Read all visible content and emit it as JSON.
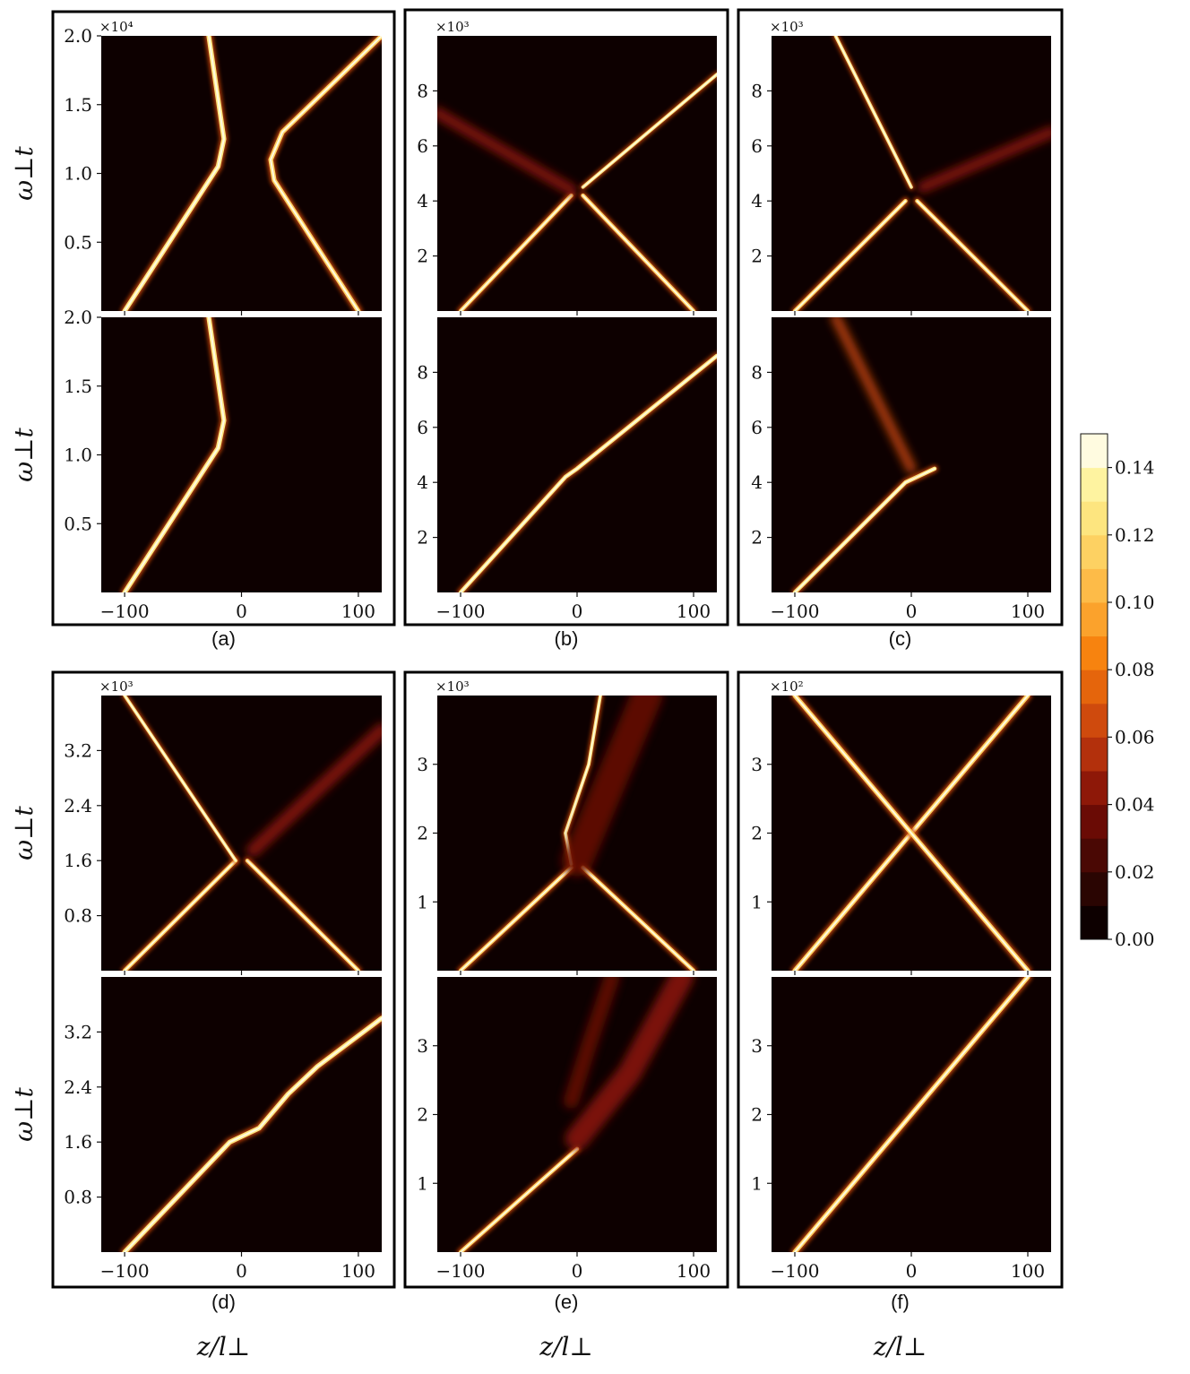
{
  "figure": {
    "ylabel": "ω⊥t",
    "xlabel": "z/l⊥",
    "colormap": [
      "#0d0000",
      "#2a0502",
      "#4a0804",
      "#6a0b05",
      "#8e1808",
      "#b3300c",
      "#cf4a0d",
      "#e5650c",
      "#f7830f",
      "#fba22c",
      "#fdbb48",
      "#fdd162",
      "#fde57f",
      "#fef3a0",
      "#fffbe0"
    ]
  },
  "colorbar": {
    "ticks": [
      "0.00",
      "0.02",
      "0.04",
      "0.06",
      "0.08",
      "0.10",
      "0.12",
      "0.14"
    ],
    "range": [
      0,
      0.15
    ]
  },
  "chart_data": [
    {
      "id": "a",
      "type": "heatmap",
      "caption": "(a)",
      "multiplier": "×10⁴",
      "xlim": [
        -120,
        120
      ],
      "ylim": [
        0,
        2.0
      ],
      "xticks": [
        "−100",
        "0",
        "100"
      ],
      "xtick_values": [
        -100,
        0,
        100
      ],
      "yticks": [
        "0.5",
        "1.0",
        "1.5",
        "2.0"
      ],
      "ytick_values": [
        0.5,
        1.0,
        1.5,
        2.0
      ],
      "top_traces": [
        {
          "width": 3.5,
          "intensity": 1.0,
          "points": [
            [
              -100,
              0
            ],
            [
              -20,
              1.05
            ],
            [
              -15,
              1.25
            ],
            [
              -28,
              2.0
            ]
          ]
        },
        {
          "width": 3.5,
          "intensity": 0.9,
          "points": [
            [
              100,
              0
            ],
            [
              28,
              0.95
            ],
            [
              25,
              1.1
            ],
            [
              35,
              1.3
            ],
            [
              120,
              2.0
            ]
          ]
        }
      ],
      "bottom_traces": [
        {
          "width": 3.5,
          "intensity": 1.0,
          "points": [
            [
              -100,
              0
            ],
            [
              -20,
              1.05
            ],
            [
              -15,
              1.25
            ],
            [
              -28,
              2.0
            ]
          ]
        }
      ]
    },
    {
      "id": "b",
      "type": "heatmap",
      "caption": "(b)",
      "multiplier": "×10³",
      "xlim": [
        -120,
        120
      ],
      "ylim": [
        0,
        10
      ],
      "xticks": [
        "−100",
        "0",
        "100"
      ],
      "xtick_values": [
        -100,
        0,
        100
      ],
      "yticks": [
        "2",
        "4",
        "6",
        "8"
      ],
      "ytick_values": [
        2,
        4,
        6,
        8
      ],
      "top_traces": [
        {
          "width": 3,
          "intensity": 0.9,
          "points": [
            [
              -100,
              0
            ],
            [
              -5,
              4.2
            ]
          ]
        },
        {
          "width": 3,
          "intensity": 0.9,
          "points": [
            [
              100,
              0
            ],
            [
              5,
              4.2
            ]
          ]
        },
        {
          "width": 2.5,
          "intensity": 1.0,
          "points": [
            [
              5,
              4.5
            ],
            [
              120,
              8.6
            ]
          ]
        },
        {
          "width": 6,
          "intensity": 0.25,
          "points": [
            [
              -5,
              4.4
            ],
            [
              -120,
              7.2
            ]
          ]
        }
      ],
      "bottom_traces": [
        {
          "width": 3,
          "intensity": 1.0,
          "points": [
            [
              -100,
              0
            ],
            [
              -10,
              4.2
            ],
            [
              0,
              4.5
            ],
            [
              120,
              8.6
            ]
          ]
        }
      ]
    },
    {
      "id": "c",
      "type": "heatmap",
      "caption": "(c)",
      "multiplier": "×10³",
      "xlim": [
        -120,
        120
      ],
      "ylim": [
        0,
        10
      ],
      "xticks": [
        "−100",
        "0",
        "100"
      ],
      "xtick_values": [
        -100,
        0,
        100
      ],
      "yticks": [
        "2",
        "4",
        "6",
        "8"
      ],
      "ytick_values": [
        2,
        4,
        6,
        8
      ],
      "top_traces": [
        {
          "width": 3,
          "intensity": 0.9,
          "points": [
            [
              -100,
              0
            ],
            [
              -5,
              4.0
            ]
          ]
        },
        {
          "width": 3,
          "intensity": 0.9,
          "points": [
            [
              100,
              0
            ],
            [
              5,
              4.0
            ]
          ]
        },
        {
          "width": 2.5,
          "intensity": 1.0,
          "points": [
            [
              0,
              4.5
            ],
            [
              -65,
              10
            ]
          ]
        },
        {
          "width": 6,
          "intensity": 0.25,
          "points": [
            [
              10,
              4.5
            ],
            [
              120,
              6.5
            ]
          ]
        }
      ],
      "bottom_traces": [
        {
          "width": 3,
          "intensity": 1.0,
          "points": [
            [
              -100,
              0
            ],
            [
              -5,
              4.0
            ],
            [
              20,
              4.5
            ]
          ]
        },
        {
          "width": 5,
          "intensity": 0.45,
          "points": [
            [
              0,
              4.5
            ],
            [
              -65,
              10
            ]
          ]
        }
      ]
    },
    {
      "id": "d",
      "type": "heatmap",
      "caption": "(d)",
      "multiplier": "×10³",
      "xlim": [
        -120,
        120
      ],
      "ylim": [
        0,
        4.0
      ],
      "xticks": [
        "−100",
        "0",
        "100"
      ],
      "xtick_values": [
        -100,
        0,
        100
      ],
      "yticks": [
        "0.8",
        "1.6",
        "2.4",
        "3.2"
      ],
      "ytick_values": [
        0.8,
        1.6,
        2.4,
        3.2
      ],
      "top_traces": [
        {
          "width": 3,
          "intensity": 0.9,
          "points": [
            [
              -100,
              0
            ],
            [
              -5,
              1.6
            ]
          ]
        },
        {
          "width": 3,
          "intensity": 0.9,
          "points": [
            [
              100,
              0
            ],
            [
              5,
              1.6
            ]
          ]
        },
        {
          "width": 2.5,
          "intensity": 1.0,
          "points": [
            [
              -5,
              1.6
            ],
            [
              -100,
              4.0
            ]
          ]
        },
        {
          "width": 7,
          "intensity": 0.3,
          "points": [
            [
              10,
              1.75
            ],
            [
              120,
              3.5
            ]
          ]
        }
      ],
      "bottom_traces": [
        {
          "width": 3.5,
          "intensity": 1.0,
          "points": [
            [
              -100,
              0
            ],
            [
              -10,
              1.6
            ],
            [
              15,
              1.8
            ],
            [
              40,
              2.3
            ],
            [
              65,
              2.7
            ],
            [
              120,
              3.4
            ]
          ]
        }
      ]
    },
    {
      "id": "e",
      "type": "heatmap",
      "caption": "(e)",
      "multiplier": "×10³",
      "xlim": [
        -120,
        120
      ],
      "ylim": [
        0,
        4.0
      ],
      "xticks": [
        "−100",
        "0",
        "100"
      ],
      "xtick_values": [
        -100,
        0,
        100
      ],
      "yticks": [
        "1",
        "2",
        "3"
      ],
      "ytick_values": [
        1,
        2,
        3
      ],
      "top_traces": [
        {
          "width": 3,
          "intensity": 0.9,
          "points": [
            [
              -100,
              0
            ],
            [
              -5,
              1.5
            ]
          ]
        },
        {
          "width": 3,
          "intensity": 0.9,
          "points": [
            [
              100,
              0
            ],
            [
              5,
              1.5
            ]
          ]
        },
        {
          "width": 2.5,
          "intensity": 1.0,
          "points": [
            [
              -5,
              1.55
            ],
            [
              -10,
              2.0
            ],
            [
              0,
              2.5
            ],
            [
              10,
              3.0
            ],
            [
              20,
              4.0
            ]
          ]
        },
        {
          "width": 16,
          "intensity": 0.22,
          "points": [
            [
              0,
              1.6
            ],
            [
              30,
              2.8
            ],
            [
              60,
              4.0
            ]
          ]
        }
      ],
      "bottom_traces": [
        {
          "width": 3,
          "intensity": 0.95,
          "points": [
            [
              -100,
              0
            ],
            [
              0,
              1.5
            ]
          ]
        },
        {
          "width": 12,
          "intensity": 0.28,
          "points": [
            [
              0,
              1.65
            ],
            [
              45,
              2.6
            ],
            [
              90,
              4.0
            ]
          ]
        },
        {
          "width": 8,
          "intensity": 0.22,
          "points": [
            [
              -5,
              2.2
            ],
            [
              10,
              3.0
            ],
            [
              30,
              4.0
            ]
          ]
        }
      ]
    },
    {
      "id": "f",
      "type": "heatmap",
      "caption": "(f)",
      "multiplier": "×10²",
      "xlim": [
        -120,
        120
      ],
      "ylim": [
        0,
        4.0
      ],
      "xticks": [
        "−100",
        "0",
        "100"
      ],
      "xtick_values": [
        -100,
        0,
        100
      ],
      "yticks": [
        "1",
        "2",
        "3"
      ],
      "ytick_values": [
        1,
        2,
        3
      ],
      "top_traces": [
        {
          "width": 3.5,
          "intensity": 0.95,
          "points": [
            [
              -100,
              0
            ],
            [
              100,
              4.0
            ]
          ]
        },
        {
          "width": 3.5,
          "intensity": 0.95,
          "points": [
            [
              100,
              0
            ],
            [
              -100,
              4.0
            ]
          ]
        }
      ],
      "bottom_traces": [
        {
          "width": 3.5,
          "intensity": 0.95,
          "points": [
            [
              -100,
              0
            ],
            [
              100,
              4.0
            ]
          ]
        }
      ]
    }
  ]
}
